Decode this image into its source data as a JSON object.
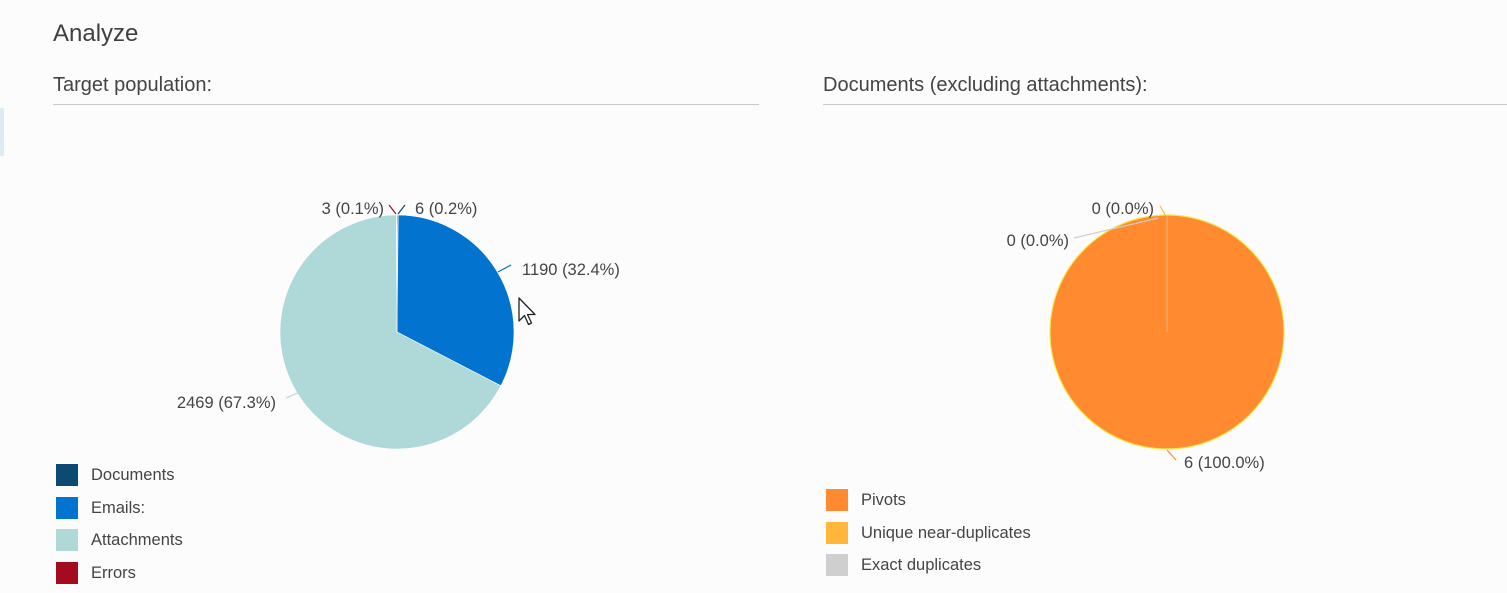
{
  "page": {
    "title": "Analyze"
  },
  "left_section": {
    "title": "Target population:",
    "legend": [
      {
        "label": "Documents",
        "color": "#0c4a73"
      },
      {
        "label": "Emails:",
        "color": "#0273cf"
      },
      {
        "label": "Attachments",
        "color": "#afd8d8"
      },
      {
        "label": "Errors",
        "color": "#a50b1f"
      }
    ]
  },
  "right_section": {
    "title": "Documents (excluding attachments):",
    "legend": [
      {
        "label": "Pivots",
        "color": "#ff8a2f"
      },
      {
        "label": "Unique near-duplicates",
        "color": "#ffb63b"
      },
      {
        "label": "Exact duplicates",
        "color": "#cfcfcf"
      }
    ]
  },
  "chart_data": [
    {
      "type": "pie",
      "title": "Target population:",
      "categories": [
        "Documents",
        "Emails:",
        "Attachments",
        "Errors"
      ],
      "values": [
        6,
        1190,
        2469,
        3
      ],
      "colors": [
        "#0c4a73",
        "#0273cf",
        "#afd8d8",
        "#a50b1f"
      ],
      "data_labels": [
        "6 (0.2%)",
        "1190 (32.4%)",
        "2469 (67.3%)",
        "3 (0.1%)"
      ]
    },
    {
      "type": "pie",
      "title": "Documents (excluding attachments):",
      "categories": [
        "Pivots",
        "Unique near-duplicates",
        "Exact duplicates"
      ],
      "values": [
        6,
        0,
        0
      ],
      "colors": [
        "#ff8a2f",
        "#ffb63b",
        "#cfcfcf"
      ],
      "data_labels": [
        "6 (100.0%)",
        "0 (0.0%)",
        "0 (0.0%)"
      ]
    }
  ]
}
